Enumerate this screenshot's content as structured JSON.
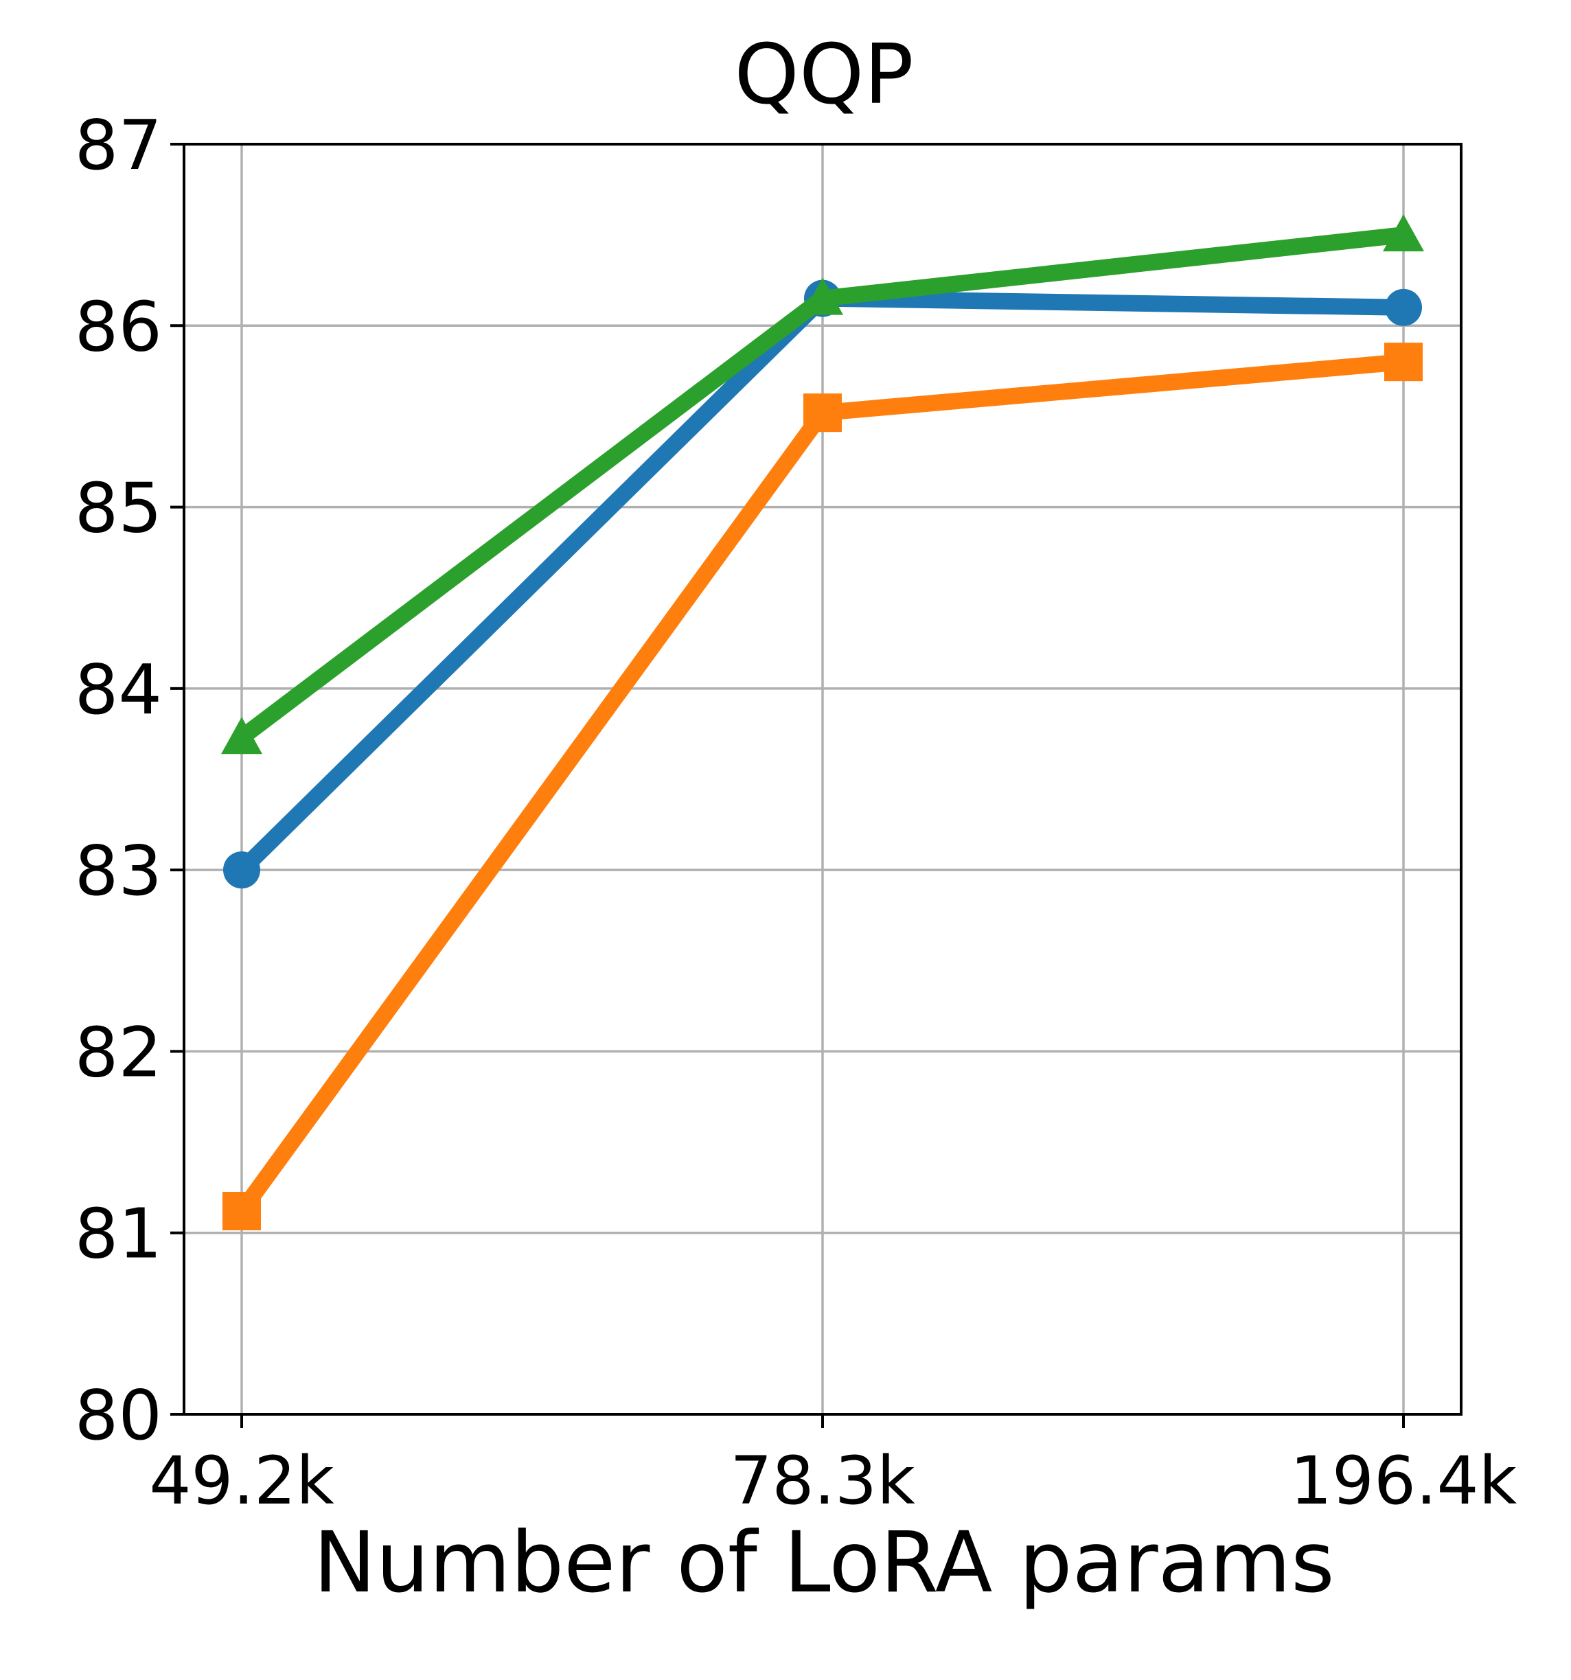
{
  "chart_data": {
    "type": "line",
    "title": "QQP",
    "xlabel": "Number of LoRA params",
    "ylabel": "",
    "categories": [
      "49.2k",
      "78.3k",
      "196.4k"
    ],
    "ylim": [
      80,
      87
    ],
    "yticks": [
      80,
      81,
      82,
      83,
      84,
      85,
      86,
      87
    ],
    "grid": true,
    "series": [
      {
        "name": "blue-circle",
        "color": "#1f77b4",
        "marker": "circle",
        "values": [
          83.0,
          86.15,
          86.1
        ]
      },
      {
        "name": "orange-square",
        "color": "#ff7f0e",
        "marker": "square",
        "values": [
          81.12,
          85.52,
          85.8
        ]
      },
      {
        "name": "green-triangle",
        "color": "#2ca02c",
        "marker": "triangle",
        "values": [
          83.73,
          86.15,
          86.5
        ]
      }
    ]
  }
}
